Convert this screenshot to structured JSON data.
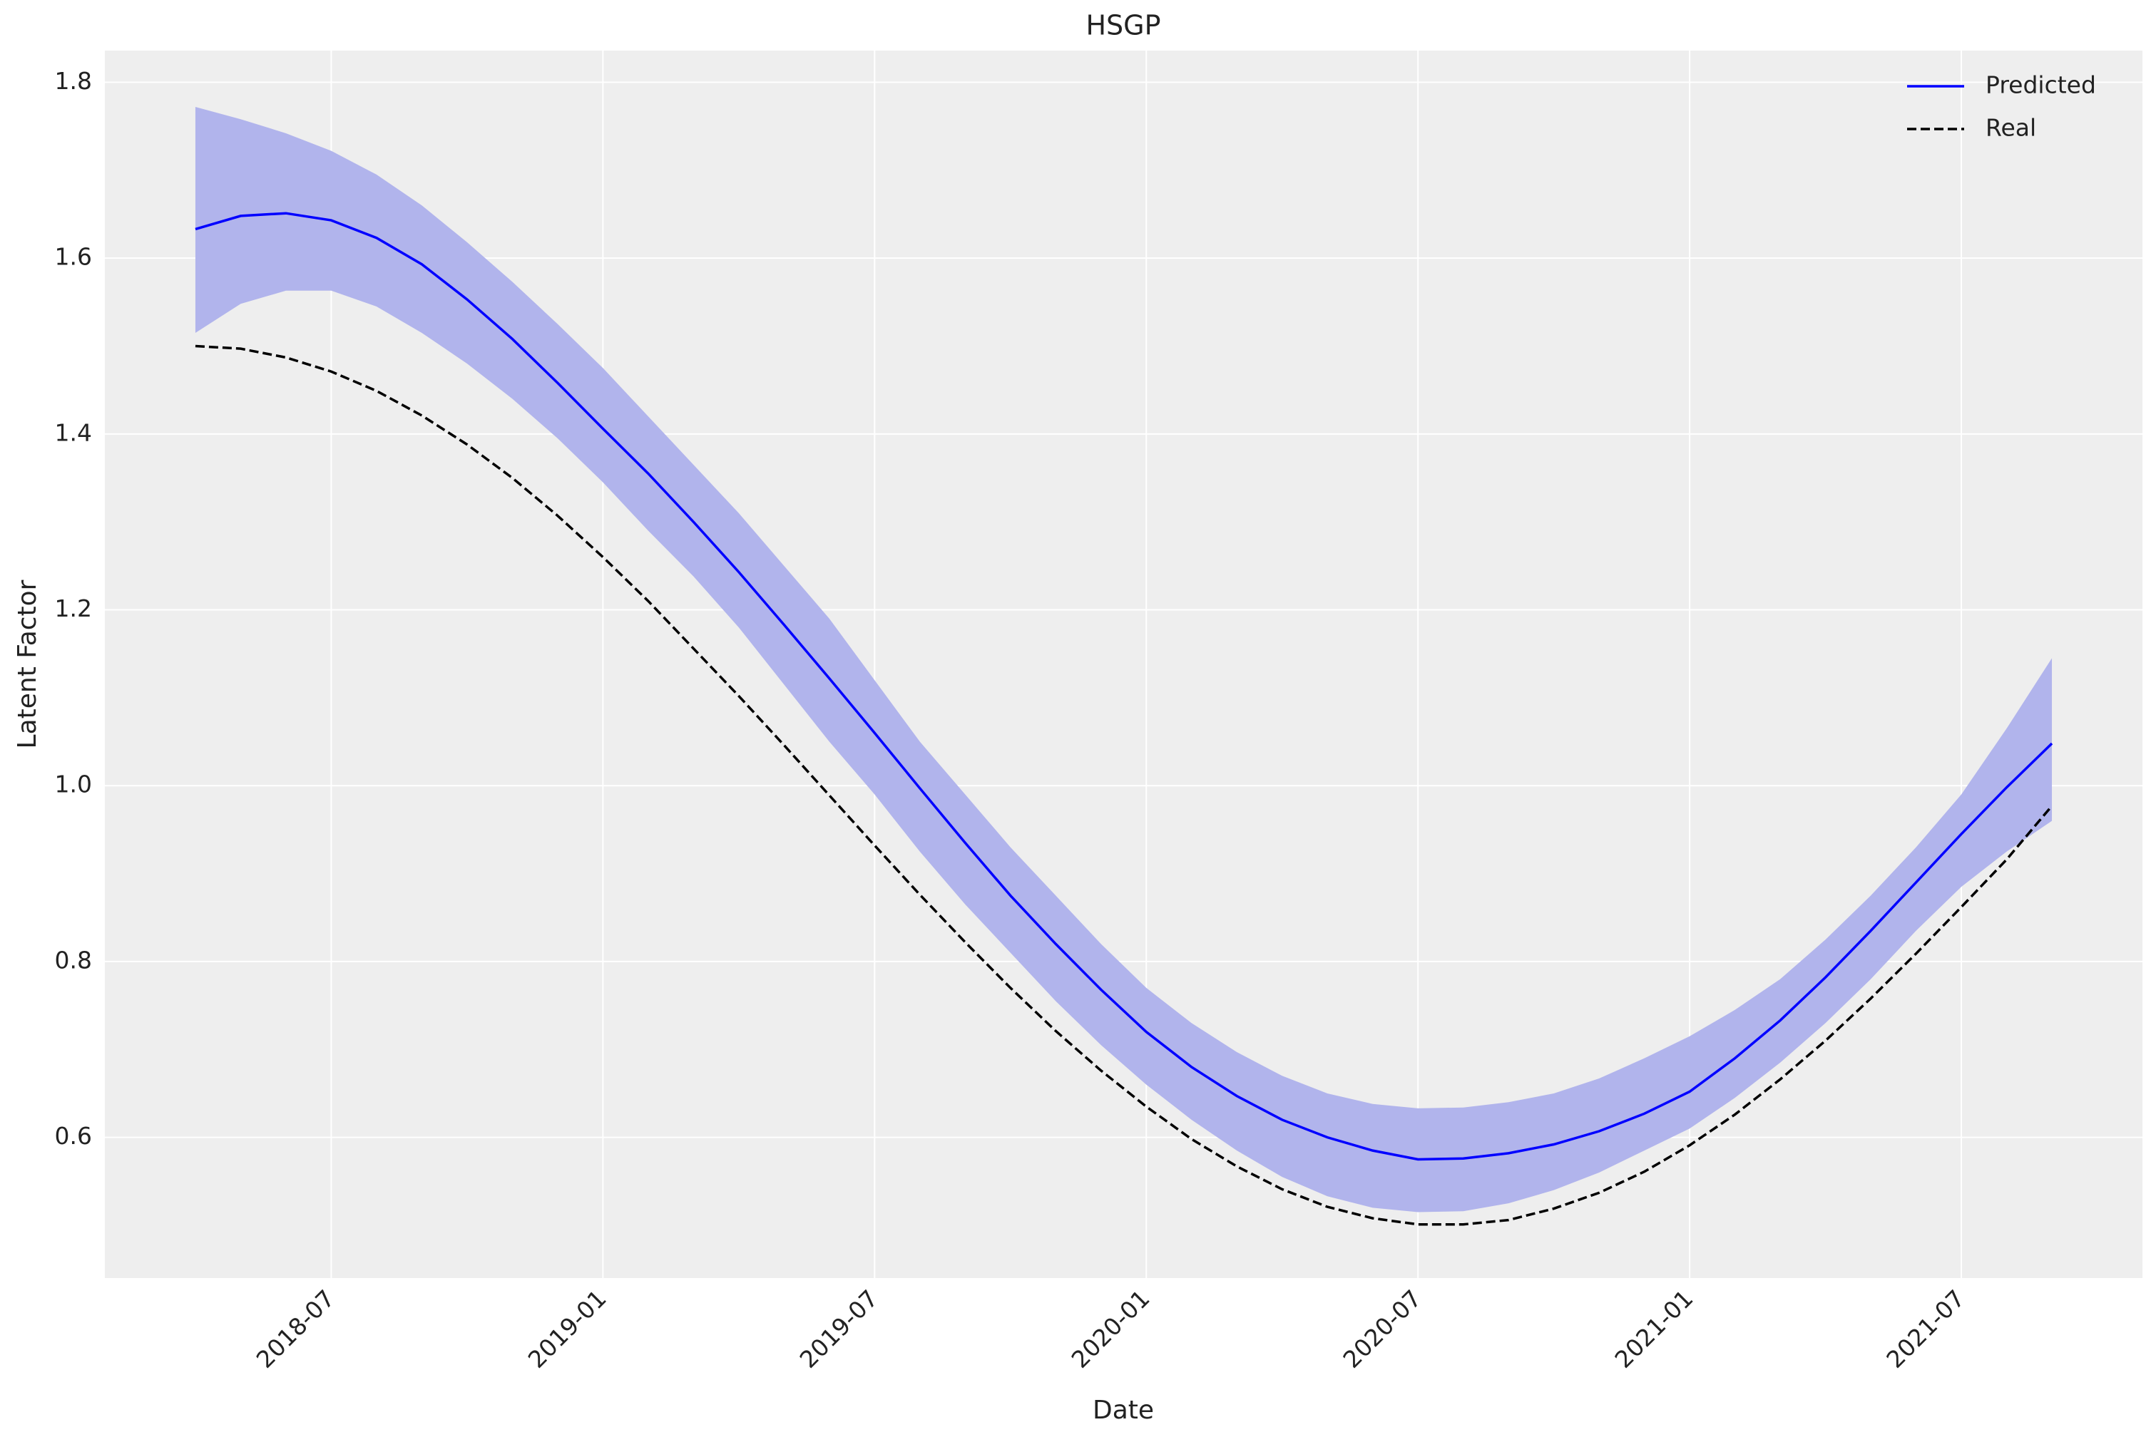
{
  "chart_data": {
    "type": "line",
    "title": "HSGP",
    "x_label": "Date",
    "y_label": "Latent Factor",
    "x": [
      "2018-04",
      "2018-05",
      "2018-06",
      "2018-07",
      "2018-08",
      "2018-09",
      "2018-10",
      "2018-11",
      "2018-12",
      "2019-01",
      "2019-02",
      "2019-03",
      "2019-04",
      "2019-05",
      "2019-06",
      "2019-07",
      "2019-08",
      "2019-09",
      "2019-10",
      "2019-11",
      "2019-12",
      "2020-01",
      "2020-02",
      "2020-03",
      "2020-04",
      "2020-05",
      "2020-06",
      "2020-07",
      "2020-08",
      "2020-09",
      "2020-10",
      "2020-11",
      "2020-12",
      "2021-01",
      "2021-02",
      "2021-03",
      "2021-04",
      "2021-05",
      "2021-06",
      "2021-07",
      "2021-08",
      "2021-09"
    ],
    "series": [
      {
        "name": "Predicted",
        "color": "#0000ff",
        "dash": "solid",
        "values": [
          1.633,
          1.648,
          1.651,
          1.643,
          1.623,
          1.593,
          1.553,
          1.508,
          1.458,
          1.406,
          1.355,
          1.3,
          1.243,
          1.183,
          1.122,
          1.06,
          0.997,
          0.935,
          0.875,
          0.82,
          0.768,
          0.72,
          0.68,
          0.647,
          0.62,
          0.6,
          0.585,
          0.575,
          0.576,
          0.582,
          0.592,
          0.607,
          0.627,
          0.652,
          0.69,
          0.733,
          0.782,
          0.835,
          0.89,
          0.945,
          0.998,
          1.048
        ]
      },
      {
        "name": "Real",
        "color": "#000000",
        "dash": "dashed",
        "values": [
          1.5,
          1.497,
          1.487,
          1.471,
          1.449,
          1.421,
          1.388,
          1.35,
          1.307,
          1.26,
          1.21,
          1.156,
          1.102,
          1.046,
          0.989,
          0.932,
          0.876,
          0.822,
          0.77,
          0.721,
          0.676,
          0.635,
          0.598,
          0.567,
          0.541,
          0.521,
          0.508,
          0.501,
          0.501,
          0.506,
          0.519,
          0.537,
          0.561,
          0.591,
          0.626,
          0.666,
          0.71,
          0.758,
          0.809,
          0.862,
          0.916,
          0.977
        ]
      }
    ],
    "interval": {
      "color": "#b1b4ec",
      "upper": [
        1.772,
        1.758,
        1.742,
        1.722,
        1.695,
        1.66,
        1.618,
        1.573,
        1.525,
        1.475,
        1.42,
        1.365,
        1.31,
        1.25,
        1.19,
        1.12,
        1.05,
        0.99,
        0.93,
        0.875,
        0.82,
        0.77,
        0.73,
        0.697,
        0.67,
        0.65,
        0.638,
        0.633,
        0.634,
        0.64,
        0.65,
        0.667,
        0.69,
        0.715,
        0.745,
        0.78,
        0.825,
        0.875,
        0.93,
        0.99,
        1.065,
        1.145
      ],
      "lower": [
        1.515,
        1.548,
        1.563,
        1.563,
        1.545,
        1.515,
        1.48,
        1.44,
        1.395,
        1.345,
        1.29,
        1.238,
        1.18,
        1.115,
        1.05,
        0.99,
        0.925,
        0.865,
        0.81,
        0.755,
        0.705,
        0.66,
        0.62,
        0.585,
        0.555,
        0.533,
        0.52,
        0.515,
        0.516,
        0.525,
        0.54,
        0.56,
        0.585,
        0.61,
        0.645,
        0.685,
        0.73,
        0.78,
        0.835,
        0.885,
        0.925,
        0.96
      ]
    },
    "xlim": [
      "2018-02",
      "2021-11"
    ],
    "xticks": [
      "2018-07",
      "2019-01",
      "2019-07",
      "2020-01",
      "2020-07",
      "2021-01",
      "2021-07"
    ],
    "ylim": [
      0.44,
      1.836
    ],
    "yticks": [
      0.6,
      0.8,
      {
        "value": 1,
        "label": "1.0"
      },
      1.2,
      1.4,
      1.6,
      1.8
    ],
    "grid": true,
    "legend": "upper right"
  }
}
